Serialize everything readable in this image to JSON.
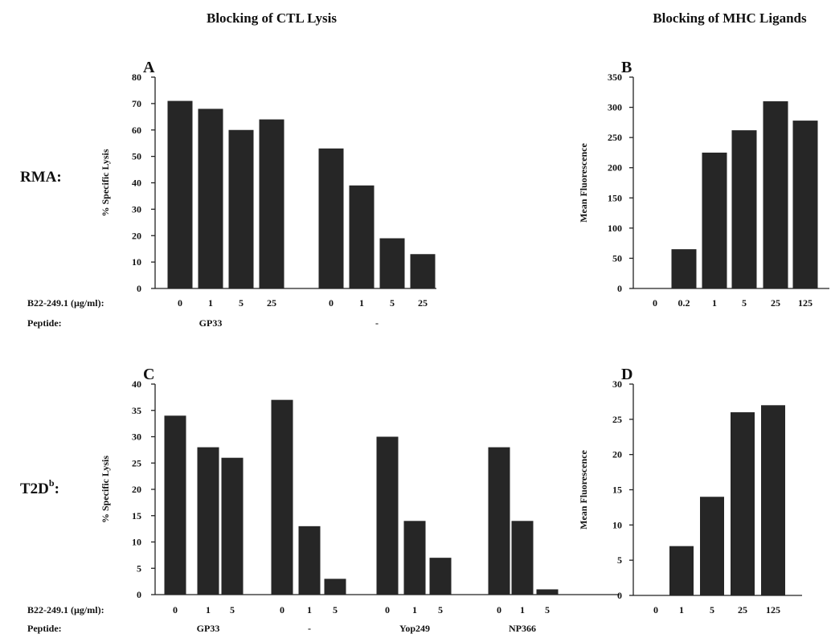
{
  "headers": {
    "left": "Blocking of CTL Lysis",
    "right": "Blocking of MHC Ligands"
  },
  "rows": {
    "top": "RMA:",
    "bottom_main": "T2D",
    "bottom_sup": "b",
    "bottom_suffix": ":"
  },
  "chart_data": [
    {
      "id": "A",
      "panel_label": "A",
      "type": "bar",
      "ylabel": "% Specific Lysis",
      "ylim": [
        0,
        80
      ],
      "yticks": [
        0,
        10,
        20,
        30,
        40,
        50,
        60,
        70,
        80
      ],
      "x_title": "B22-249.1 (µg/ml):",
      "group_title": "Peptide:",
      "groups": [
        {
          "peptide": "GP33",
          "categories": [
            "0",
            "1",
            "5",
            "25"
          ],
          "values": [
            71,
            68,
            60,
            64
          ]
        },
        {
          "peptide": "-",
          "categories": [
            "0",
            "1",
            "5",
            "25"
          ],
          "values": [
            53,
            39,
            19,
            13
          ]
        }
      ]
    },
    {
      "id": "B",
      "panel_label": "B",
      "type": "bar",
      "ylabel": "Mean Fluorescence",
      "ylim": [
        0,
        350
      ],
      "yticks": [
        0,
        50,
        100,
        150,
        200,
        250,
        300,
        350
      ],
      "categories": [
        "0",
        "0.2",
        "1",
        "5",
        "25",
        "125"
      ],
      "values": [
        0,
        65,
        225,
        262,
        310,
        278
      ]
    },
    {
      "id": "C",
      "panel_label": "C",
      "type": "bar",
      "ylabel": "% Specific Lysis",
      "ylim": [
        0,
        40
      ],
      "yticks": [
        0,
        5,
        10,
        15,
        20,
        25,
        30,
        35,
        40
      ],
      "x_title": "B22-249.1 (µg/ml):",
      "group_title": "Peptide:",
      "groups": [
        {
          "peptide": "GP33",
          "categories": [
            "0",
            "1",
            "5"
          ],
          "values": [
            34,
            28,
            26
          ]
        },
        {
          "peptide": "-",
          "categories": [
            "0",
            "1",
            "5"
          ],
          "values": [
            37,
            13,
            3
          ]
        },
        {
          "peptide": "Yop249",
          "categories": [
            "0",
            "1",
            "5"
          ],
          "values": [
            30,
            14,
            7
          ]
        },
        {
          "peptide": "NP366",
          "categories": [
            "0",
            "1",
            "5"
          ],
          "values": [
            28,
            14,
            1
          ]
        }
      ]
    },
    {
      "id": "D",
      "panel_label": "D",
      "type": "bar",
      "ylabel": "Mean Fluorescence",
      "ylim": [
        0,
        30
      ],
      "yticks": [
        0,
        5,
        10,
        15,
        20,
        25,
        30
      ],
      "categories": [
        "0",
        "1",
        "5",
        "25",
        "125"
      ],
      "values": [
        0,
        7,
        14,
        26,
        27
      ]
    }
  ]
}
